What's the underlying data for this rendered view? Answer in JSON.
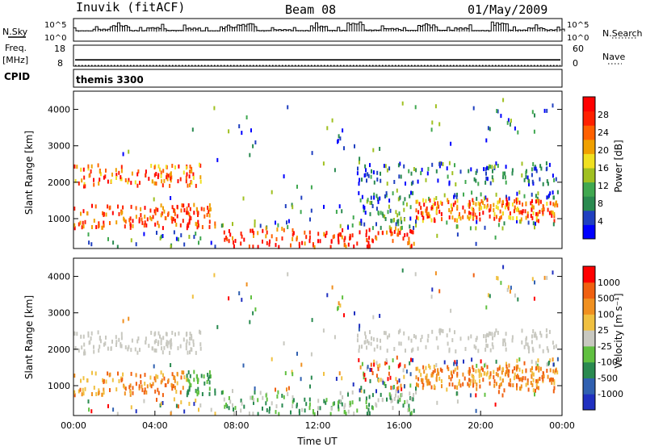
{
  "header": {
    "station": "Inuvik (fitACF)",
    "beam": "Beam 08",
    "date": "01/May/2009"
  },
  "side_labels": {
    "nsky": "N.Sky",
    "nsearch": "N.Search",
    "freq": "Freq.",
    "mhz": "[MHz]",
    "nave": "Nave",
    "cpid": "CPID"
  },
  "chart_data": [
    {
      "type": "line",
      "name": "noise",
      "log_ticks": [
        "10^5",
        "10^0"
      ],
      "ylim": [
        0,
        5
      ],
      "sky_profile": [
        0.4,
        1.2,
        3.2,
        0.5,
        2.1,
        0.6,
        1.8,
        0.4,
        2.4,
        3.8,
        0.5,
        1.0,
        0.5,
        2.9,
        0.6,
        4.5,
        0.8,
        1.6,
        0.6,
        3.4,
        0.7,
        1.9,
        0.5,
        4.6,
        0.8,
        2.0,
        0.9,
        1.4
      ]
    },
    {
      "type": "line",
      "name": "frequency",
      "left_ticks": [
        "18",
        "8"
      ],
      "right_ticks": [
        "60",
        "0"
      ],
      "freq_mhz": 11,
      "ylim": [
        8,
        18
      ]
    },
    {
      "type": "text",
      "name": "cpid",
      "value": "themis 3300"
    },
    {
      "type": "heatmap",
      "name": "power",
      "ylabel": "Slant Range [km]",
      "yticks": [
        1000,
        2000,
        3000,
        4000
      ],
      "ylim": [
        180,
        4500
      ],
      "xlim": [
        0,
        24
      ],
      "colorbar_label": "Power [dB]",
      "colorbar_ticks": [
        "28",
        "24",
        "20",
        "16",
        "12",
        "8",
        "4"
      ],
      "colors": [
        "#0000ff",
        "#2040c0",
        "#2a8a50",
        "#40a850",
        "#a0c020",
        "#f0e020",
        "#f0a000",
        "#ff6000",
        "#ff2000",
        "#ff0000"
      ]
    },
    {
      "type": "heatmap",
      "name": "velocity",
      "ylabel": "Slant Range [km]",
      "yticks": [
        1000,
        2000,
        3000,
        4000
      ],
      "ylim": [
        180,
        4500
      ],
      "xlim": [
        0,
        24
      ],
      "xticks": [
        "00:00",
        "04:00",
        "08:00",
        "12:00",
        "16:00",
        "20:00",
        "00:00"
      ],
      "xlabel": "Time UT",
      "colorbar_label": "Velocity [m s⁻¹]",
      "colorbar_ticks": [
        "1000",
        "500",
        "100",
        "25",
        "-25",
        "-100",
        "-500",
        "-1000"
      ],
      "colors": [
        "#2030c0",
        "#3060b0",
        "#2a8a50",
        "#60c040",
        "#c8c8c0",
        "#f0c040",
        "#f09020",
        "#f06010",
        "#ff0000"
      ]
    }
  ]
}
